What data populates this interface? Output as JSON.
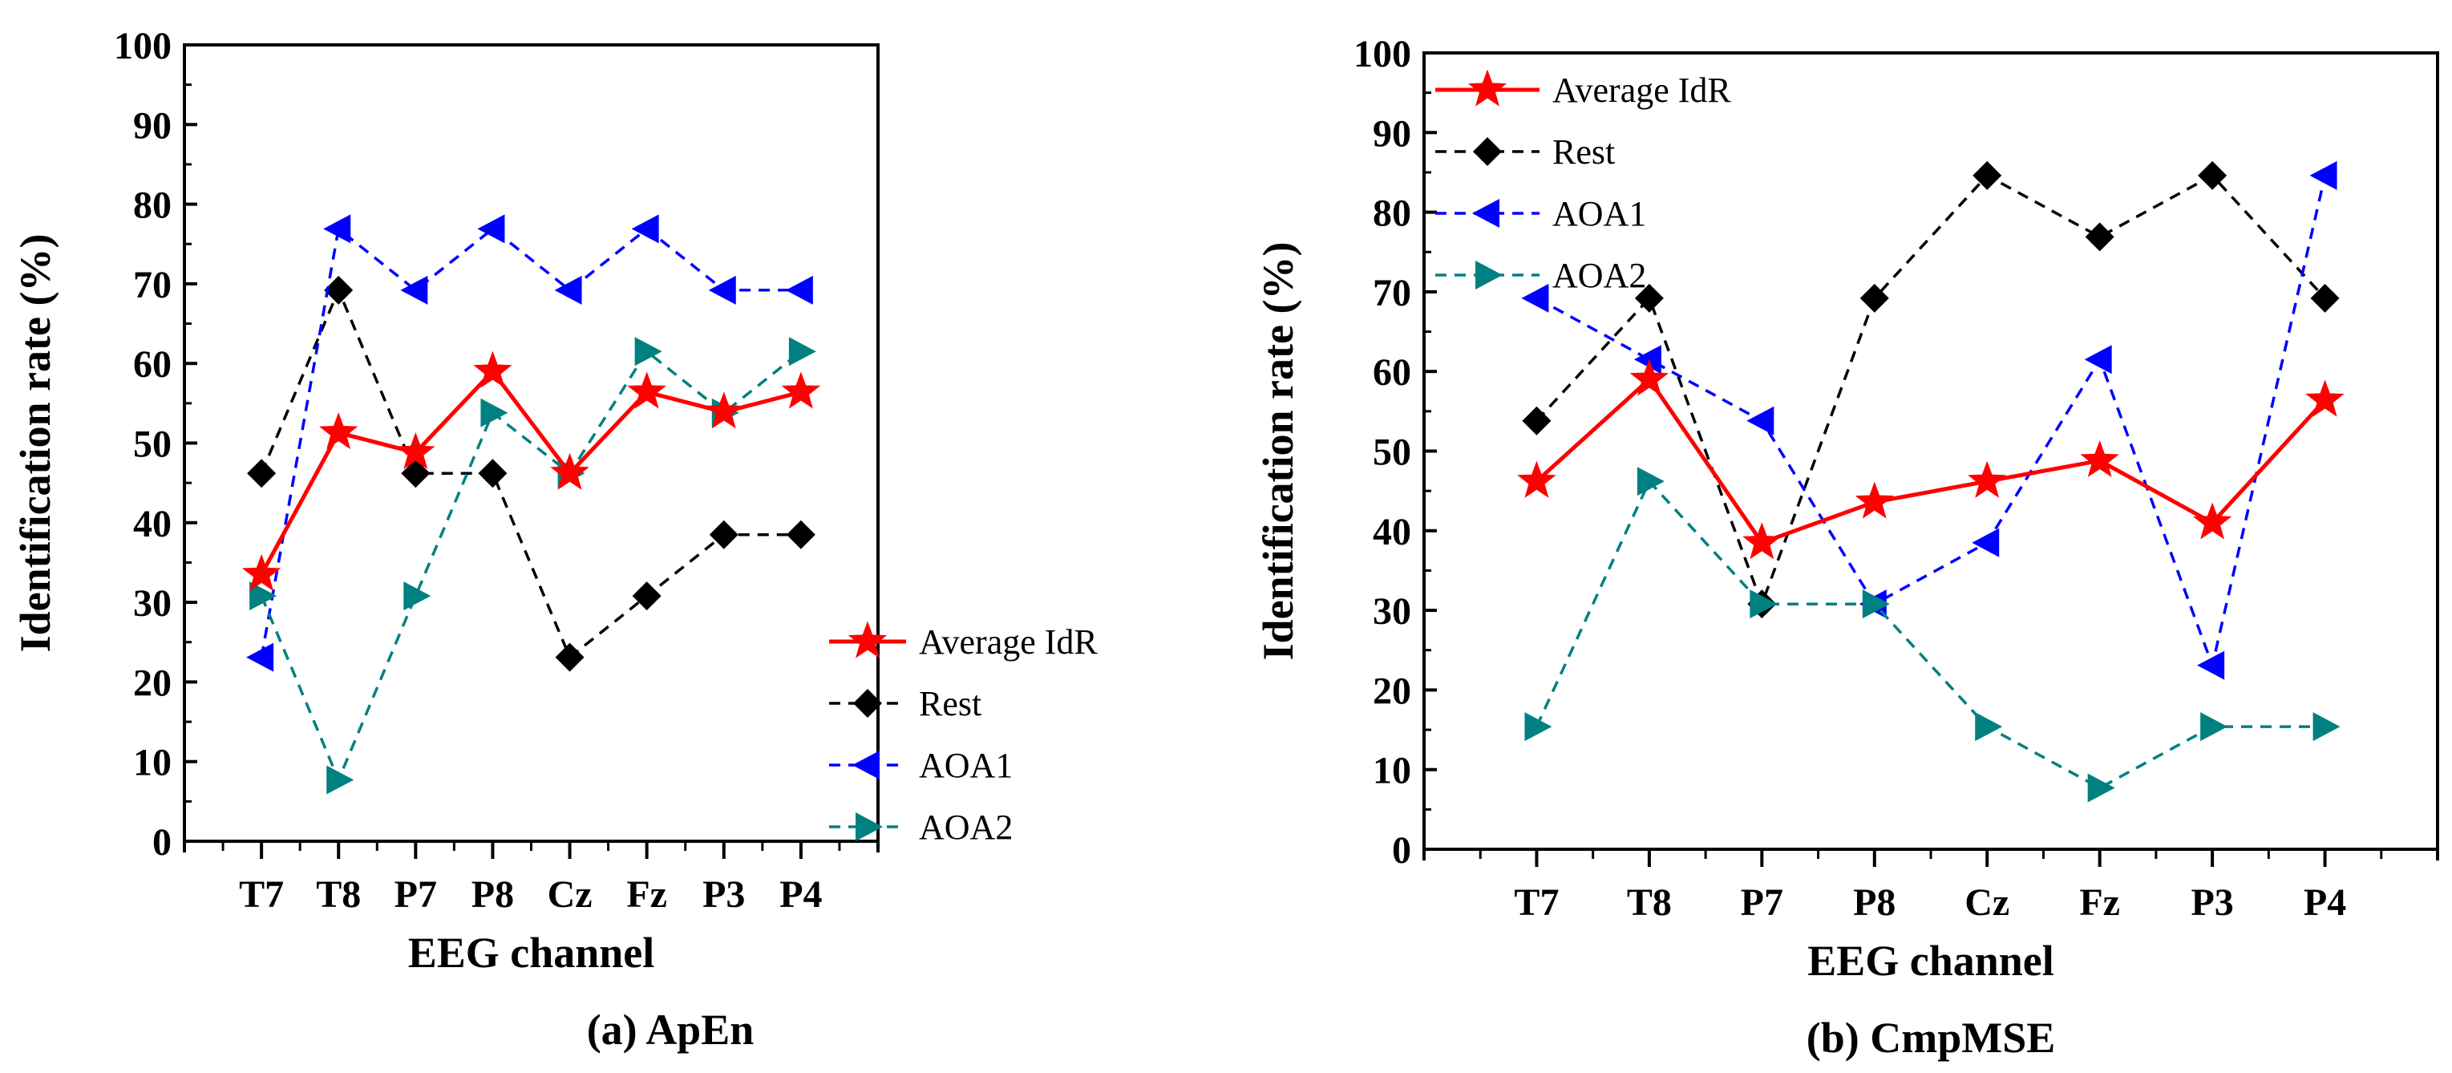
{
  "chart_data": [
    {
      "type": "line",
      "panel_caption": "(a) ApEn",
      "xlabel": "EEG channel",
      "ylabel": "Identification rate  (%)",
      "categories": [
        "T7",
        "T8",
        "P7",
        "P8",
        "Cz",
        "Fz",
        "P3",
        "P4"
      ],
      "ylim": [
        0,
        100
      ],
      "yticks": [
        "0",
        "10",
        "20",
        "30",
        "40",
        "50",
        "60",
        "70",
        "80",
        "90",
        "100"
      ],
      "legend_position": "bottom-right",
      "series": [
        {
          "name": "Average IdR",
          "values": [
            33.5,
            51.3,
            48.8,
            59.0,
            46.2,
            56.4,
            53.9,
            56.4
          ],
          "color": "#ff0000",
          "marker": "star",
          "dash": "solid"
        },
        {
          "name": "Rest",
          "values": [
            46.2,
            69.2,
            46.2,
            46.2,
            23.1,
            30.8,
            38.5,
            38.5
          ],
          "color": "#000000",
          "marker": "diamond",
          "dash": "dashed"
        },
        {
          "name": "AOA1",
          "values": [
            23.1,
            76.9,
            69.2,
            76.9,
            69.2,
            76.9,
            69.2,
            69.2
          ],
          "color": "#0000ff",
          "marker": "triangle-left",
          "dash": "dashed"
        },
        {
          "name": "AOA2",
          "values": [
            30.8,
            7.7,
            30.8,
            53.8,
            46.2,
            61.5,
            53.8,
            61.5
          ],
          "color": "#008080",
          "marker": "triangle-right",
          "dash": "dashed"
        }
      ]
    },
    {
      "type": "line",
      "panel_caption": "(b) CmpMSE",
      "xlabel": "EEG channel",
      "ylabel": "Identification rate  (%)",
      "categories": [
        "T7",
        "T8",
        "P7",
        "P8",
        "Cz",
        "Fz",
        "P3",
        "P4"
      ],
      "ylim": [
        0,
        100
      ],
      "yticks": [
        "0",
        "10",
        "20",
        "30",
        "40",
        "50",
        "60",
        "70",
        "80",
        "90",
        "100"
      ],
      "legend_position": "top-left",
      "series": [
        {
          "name": "Average IdR",
          "values": [
            46.2,
            59.0,
            38.5,
            43.6,
            46.2,
            48.8,
            41.0,
            56.4
          ],
          "color": "#ff0000",
          "marker": "star",
          "dash": "solid"
        },
        {
          "name": "Rest",
          "values": [
            53.8,
            69.2,
            30.8,
            69.2,
            84.6,
            76.9,
            84.6,
            69.2
          ],
          "color": "#000000",
          "marker": "diamond",
          "dash": "dashed"
        },
        {
          "name": "AOA1",
          "values": [
            69.2,
            61.5,
            53.8,
            30.8,
            38.5,
            61.5,
            23.1,
            84.6
          ],
          "color": "#0000ff",
          "marker": "triangle-left",
          "dash": "dashed"
        },
        {
          "name": "AOA2",
          "values": [
            15.4,
            46.2,
            30.8,
            30.8,
            15.4,
            7.7,
            15.4,
            15.4
          ],
          "color": "#008080",
          "marker": "triangle-right",
          "dash": "dashed"
        }
      ]
    }
  ]
}
